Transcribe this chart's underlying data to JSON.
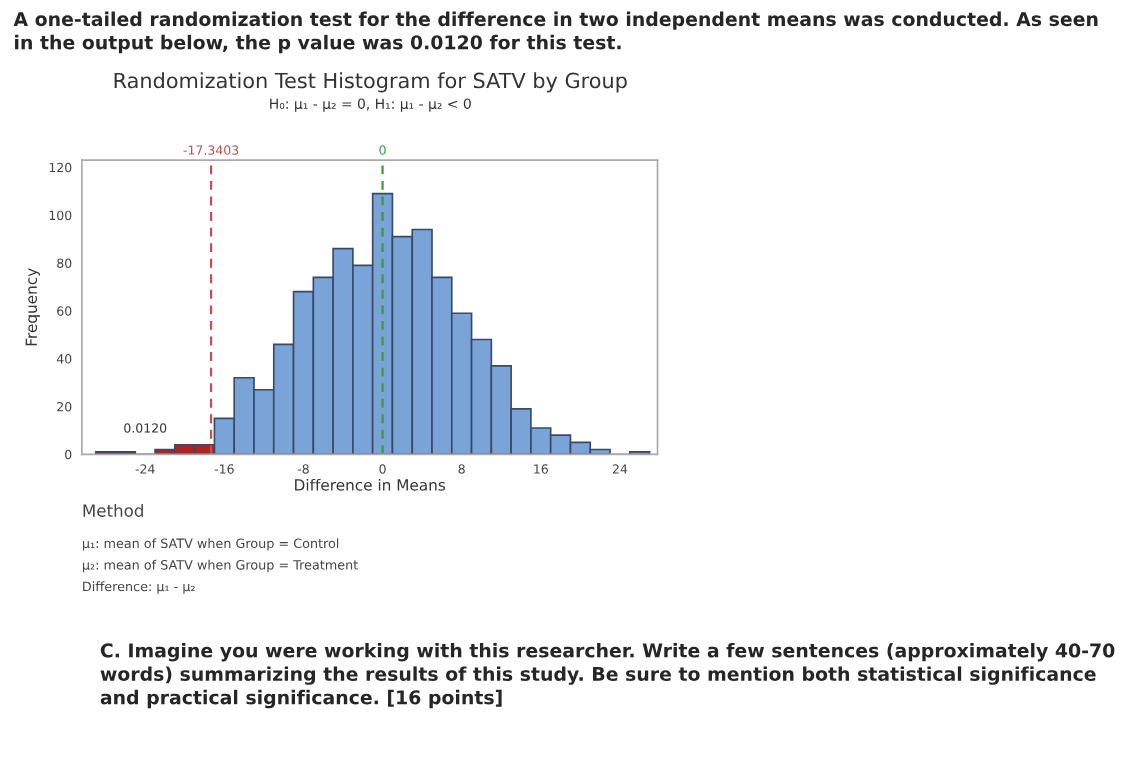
{
  "chart_data": {
    "type": "histogram",
    "title": "Randomization Test Histogram for SATV by Group",
    "subtitle": "H₀: μ₁ - μ₂ = 0, H₁: μ₁ - μ₂ < 0",
    "xlabel": "Difference in Means",
    "ylabel": "Frequency",
    "bins": [
      -29,
      -27,
      -25,
      -23,
      -21,
      -19,
      -17,
      -15,
      -13,
      -11,
      -9,
      -7,
      -5,
      -3,
      -1,
      1,
      3,
      5,
      7,
      9,
      11,
      13,
      15,
      17,
      19,
      21,
      23,
      25,
      27
    ],
    "values": [
      1,
      1,
      0,
      2,
      4,
      4,
      15,
      32,
      27,
      46,
      68,
      74,
      86,
      79,
      109,
      91,
      94,
      74,
      59,
      48,
      37,
      19,
      11,
      8,
      5,
      2,
      0,
      1
    ],
    "colors": [
      "#8b1e1e",
      "#8b1e1e",
      "#b22222",
      "#b22222",
      "#b22222",
      "#b22222",
      "#7aa3d8",
      "#7aa3d8",
      "#7aa3d8",
      "#7aa3d8",
      "#7aa3d8",
      "#7aa3d8",
      "#7aa3d8",
      "#7aa3d8",
      "#7aa3d8",
      "#7aa3d8",
      "#7aa3d8",
      "#7aa3d8",
      "#7aa3d8",
      "#7aa3d8",
      "#7aa3d8",
      "#7aa3d8",
      "#7aa3d8",
      "#7aa3d8",
      "#7aa3d8",
      "#7aa3d8",
      "#7aa3d8",
      "#7aa3d8"
    ],
    "xlim": [
      -30.4,
      27.8
    ],
    "ylim": [
      0,
      123
    ],
    "xticks": [
      -24,
      -16,
      -8,
      0,
      8,
      16,
      24
    ],
    "yticks": [
      0,
      20,
      40,
      60,
      80,
      100,
      120
    ],
    "ref_lines": [
      {
        "axis": "x",
        "value": -17.3403,
        "label": "-17.3403",
        "color": "#c0504d",
        "line_style": "dashed"
      },
      {
        "axis": "x",
        "value": 0,
        "label": "0",
        "color": "#3a9a3a",
        "line_style": "dashed"
      }
    ],
    "grid": false,
    "annotations": [
      "A one-tailed randomization test for the difference in two independent means was conducted. As seen in the output below, the p value was 0.0120 for this test.",
      "0.0120",
      "Method",
      "μ₁: mean of SATV when Group = Control",
      "μ₂: mean of SATV when Group = Treatment",
      "Difference: μ₁ - μ₂",
      "C. Imagine you were working with this researcher. Write a few sentences (approximately 40-70 words) summarizing the results of this study. Be sure to mention both statistical significance and practical significance. [16 points]"
    ]
  }
}
